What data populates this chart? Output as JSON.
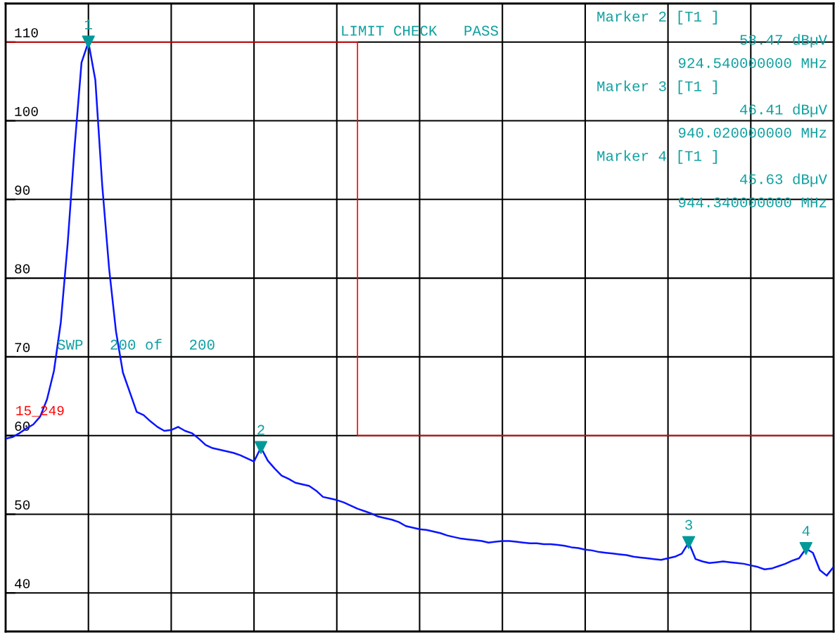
{
  "chart_data": {
    "type": "line",
    "categories": [
      null,
      null,
      null,
      null,
      null,
      null,
      null,
      null,
      null,
      null,
      null,
      null,
      null,
      null,
      null,
      null,
      null,
      null,
      null,
      null,
      null,
      null,
      null,
      null,
      null,
      null,
      null,
      null,
      null,
      null,
      null,
      null,
      null,
      null,
      null,
      null,
      null,
      null,
      null,
      null,
      null,
      null,
      null,
      null,
      null,
      null,
      null,
      null,
      null,
      null,
      null,
      null,
      null,
      null,
      null,
      null,
      null,
      null,
      null,
      null,
      null,
      null,
      null,
      null,
      null,
      null,
      null,
      null,
      null,
      null,
      null,
      null,
      null,
      null,
      null,
      null,
      null,
      null,
      null,
      null,
      null,
      null,
      null,
      null,
      null,
      null,
      null,
      null,
      null,
      null,
      null,
      null,
      null,
      null,
      null,
      null,
      null,
      null,
      null,
      null,
      null,
      null,
      null,
      null,
      null,
      null,
      null,
      null,
      null,
      null,
      null,
      null,
      null,
      null,
      null,
      null,
      null,
      null,
      null,
      null,
      null
    ],
    "series": [
      {
        "color": "#0a14ff",
        "values": [
          59.6,
          59.8,
          60.3,
          60.9,
          61.4,
          62.4,
          64.6,
          68.2,
          74.4,
          84.5,
          96.7,
          107.4,
          110.0,
          105.2,
          91.8,
          81.2,
          73.2,
          68.0,
          65.5,
          63.0,
          62.6,
          61.8,
          61.1,
          60.6,
          60.7,
          61.1,
          60.6,
          60.3,
          59.6,
          58.8,
          58.4,
          58.2,
          58.0,
          57.8,
          57.5,
          57.1,
          56.7,
          58.47,
          56.8,
          55.8,
          54.9,
          54.5,
          54.0,
          53.8,
          53.6,
          53.0,
          52.2,
          52.0,
          51.8,
          51.5,
          51.1,
          50.7,
          50.4,
          50.1,
          49.7,
          49.5,
          49.3,
          49.0,
          48.5,
          48.3,
          48.1,
          48.0,
          47.8,
          47.6,
          47.3,
          47.1,
          46.9,
          46.8,
          46.7,
          46.6,
          46.4,
          46.5,
          46.6,
          46.6,
          46.5,
          46.4,
          46.3,
          46.3,
          46.2,
          46.2,
          46.1,
          46.0,
          45.8,
          45.7,
          45.5,
          45.4,
          45.2,
          45.1,
          45.0,
          44.9,
          44.8,
          44.6,
          44.5,
          44.4,
          44.3,
          44.2,
          44.4,
          44.6,
          45.0,
          46.41,
          44.3,
          44.0,
          43.8,
          43.9,
          44.0,
          43.9,
          43.8,
          43.7,
          43.5,
          43.3,
          43.0,
          43.1,
          43.4,
          43.7,
          44.1,
          44.4,
          45.63,
          45.1,
          42.9,
          42.2,
          43.3
        ]
      },
      {
        "type": "step",
        "name": "15_249",
        "color": "#ff0000",
        "values": [
          110,
          110,
          110,
          110,
          110,
          110,
          110,
          110,
          110,
          110,
          110,
          110,
          110,
          110,
          110,
          110,
          110,
          110,
          110,
          110,
          110,
          110,
          110,
          110,
          110,
          110,
          110,
          110,
          110,
          110,
          110,
          110,
          110,
          110,
          110,
          110,
          110,
          110,
          110,
          110,
          110,
          110,
          110,
          110,
          110,
          110,
          110,
          110,
          110,
          110,
          110,
          60,
          60,
          60,
          60,
          60,
          60,
          60,
          60,
          60,
          60,
          60,
          60,
          60,
          60,
          60,
          60,
          60,
          60,
          60,
          60,
          60,
          60,
          60,
          60,
          60,
          60,
          60,
          60,
          60,
          60,
          60,
          60,
          60,
          60,
          60,
          60,
          60,
          60,
          60,
          60,
          60,
          60,
          60,
          60,
          60,
          60,
          60,
          60,
          60,
          60,
          60,
          60,
          60,
          60,
          60,
          60,
          60,
          60,
          60,
          60,
          60,
          60,
          60,
          60,
          60,
          60,
          60,
          60,
          60,
          60
        ]
      },
      {
        "type": "scatter",
        "color": "#009999",
        "marker": "triangle",
        "values": [
          null,
          null,
          null,
          null,
          null,
          null,
          null,
          null,
          null,
          null,
          null,
          null,
          110.0,
          null,
          null,
          null,
          null,
          null,
          null,
          null,
          null,
          null,
          null,
          null,
          null,
          null,
          null,
          null,
          null,
          null,
          null,
          null,
          null,
          null,
          null,
          null,
          null,
          58.47,
          null,
          null,
          null,
          null,
          null,
          null,
          null,
          null,
          null,
          null,
          null,
          null,
          null,
          null,
          null,
          null,
          null,
          null,
          null,
          null,
          null,
          null,
          null,
          null,
          null,
          null,
          null,
          null,
          null,
          null,
          null,
          null,
          null,
          null,
          null,
          null,
          null,
          null,
          null,
          null,
          null,
          null,
          null,
          null,
          null,
          null,
          null,
          null,
          null,
          null,
          null,
          null,
          null,
          null,
          null,
          null,
          null,
          null,
          null,
          null,
          null,
          46.41,
          null,
          null,
          null,
          null,
          null,
          null,
          null,
          null,
          null,
          null,
          null,
          null,
          null,
          null,
          null,
          null,
          45.63,
          null,
          null,
          null,
          null
        ]
      }
    ],
    "annotations": [
      "LIMIT CHECK   PASS",
      "SWP   200 of   200",
      "Marker 2 [T1 ]",
      "58.47 dBµV",
      "924.540000000 MHz",
      "Marker 3 [T1 ]",
      "46.41 dBµV",
      "940.020000000 MHz",
      "Marker 4 [T1 ]",
      "45.63 dBµV",
      "944.340000000 MHz",
      "1",
      "2",
      "3",
      "4"
    ],
    "ylim": [
      35.1,
      114.9
    ],
    "yticks": [
      40,
      50,
      60,
      70,
      80,
      90,
      100,
      110
    ],
    "tick_labels": "y",
    "grid": true,
    "line_style": "solid"
  }
}
